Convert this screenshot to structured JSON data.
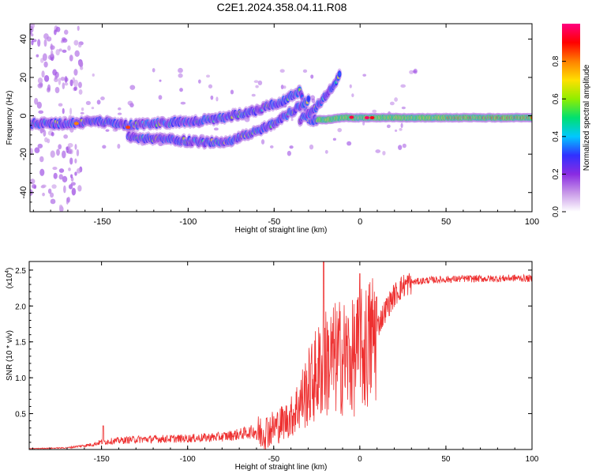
{
  "title": "C2E1.2024.358.04.11.R08",
  "colors": {
    "line": "#ee3030",
    "axis": "#000000",
    "background": "#ffffff"
  },
  "chart_data": [
    {
      "type": "heatmap",
      "xlabel": "Height of straight line (km)",
      "ylabel": "Frequency (Hz)",
      "xlim": [
        -192,
        100
      ],
      "ylim": [
        -50,
        48
      ],
      "xticks": [
        -150,
        -100,
        -50,
        0,
        50,
        100
      ],
      "yticks": [
        -40,
        -20,
        0,
        20,
        40
      ],
      "colorbar": {
        "label": "Normalized spectral amplitude",
        "range": [
          0.0,
          1.0
        ],
        "ticks": [
          0.0,
          0.2,
          0.4,
          0.6,
          0.8
        ],
        "colormap": [
          "#ffffff",
          "#c898e8",
          "#8a2be2",
          "#3030ff",
          "#00c8ff",
          "#00e070",
          "#90ee00",
          "#ffe000",
          "#ff8000",
          "#ff0000",
          "#ff0080"
        ]
      },
      "ridges": [
        {
          "name": "main",
          "x": [
            -192,
            -170,
            -150,
            -135,
            -120,
            -100,
            -85,
            -70,
            -60,
            -50,
            -42,
            -35,
            -30,
            -20,
            -10,
            0,
            10,
            30,
            50,
            80,
            100
          ],
          "y": [
            -4,
            -4,
            -3,
            -5,
            -4,
            -3,
            -2,
            1,
            3,
            6,
            9,
            13,
            -2,
            -2,
            -1,
            -1,
            -1,
            -1,
            -1,
            -1,
            -1
          ]
        },
        {
          "name": "lower",
          "x": [
            -135,
            -120,
            -100,
            -90,
            -75,
            -60,
            -50,
            -40,
            -30
          ],
          "y": [
            -11,
            -12,
            -13,
            -14,
            -13,
            -8,
            -4,
            2,
            8
          ]
        },
        {
          "name": "upper",
          "x": [
            -35,
            -28,
            -22,
            -15,
            -12
          ],
          "y": [
            -2,
            2,
            8,
            16,
            22
          ]
        }
      ]
    },
    {
      "type": "line",
      "xlabel": "Height of straight line (km)",
      "ylabel": "SNR (10 * v/v)",
      "yscale_label": "(x10",
      "yscale_exp": "4",
      "xlim": [
        -192,
        100
      ],
      "ylim": [
        0,
        2.62
      ],
      "xticks": [
        -150,
        -100,
        -50,
        0,
        50,
        100
      ],
      "yticks": [
        0.5,
        1.0,
        1.5,
        2.0,
        2.5
      ],
      "ytick_labels": [
        "0.5",
        "1.0",
        "1.5",
        "2.0",
        "2.5"
      ],
      "envelope": {
        "x": [
          -192,
          -170,
          -155,
          -150,
          -130,
          -100,
          -80,
          -70,
          -60,
          -50,
          -40,
          -35,
          -30,
          -25,
          -20,
          -15,
          -10,
          -5,
          0,
          5,
          10,
          15,
          20,
          25,
          30,
          40,
          50,
          60,
          70,
          80,
          90,
          100
        ],
        "y": [
          0.01,
          0.02,
          0.06,
          0.09,
          0.12,
          0.13,
          0.15,
          0.18,
          0.22,
          0.3,
          0.45,
          0.65,
          0.85,
          1.05,
          1.2,
          1.25,
          1.3,
          1.25,
          1.35,
          1.45,
          1.7,
          1.95,
          2.15,
          2.28,
          2.33,
          2.36,
          2.37,
          2.38,
          2.38,
          2.38,
          2.39,
          2.38
        ]
      },
      "spikes": [
        {
          "x": -149,
          "y": 0.33
        },
        {
          "x": -21,
          "y": 2.62
        },
        {
          "x": 0,
          "y": 2.45
        }
      ]
    }
  ]
}
